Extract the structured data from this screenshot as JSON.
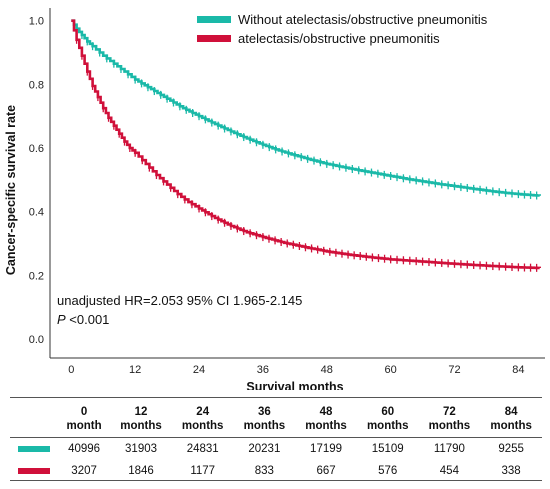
{
  "chart_data": {
    "type": "line",
    "xlabel": "Survival months",
    "ylabel": "Cancer-specific survival rate",
    "xlim": [
      -4,
      89
    ],
    "ylim": [
      -0.06,
      1.04
    ],
    "x_ticks": [
      0,
      12,
      24,
      36,
      48,
      60,
      72,
      84
    ],
    "x_tick_labels": [
      "0",
      "12",
      "24",
      "36",
      "48",
      "60",
      "72",
      "84"
    ],
    "y_ticks": [
      0.0,
      0.2,
      0.4,
      0.6,
      0.8,
      1.0
    ],
    "y_tick_labels": [
      "0.0",
      "0.2",
      "0.4",
      "0.6",
      "0.8",
      "1.0"
    ],
    "legend_position": "top-right",
    "grid": false,
    "series": [
      {
        "name": "Without atelectasis/obstructive pneumonitis",
        "color": "#1ab9a8",
        "x": [
          0,
          1,
          2,
          3,
          4,
          6,
          8,
          10,
          12,
          15,
          18,
          21,
          24,
          27,
          30,
          33,
          36,
          39,
          42,
          45,
          48,
          51,
          54,
          57,
          60,
          63,
          66,
          69,
          72,
          75,
          78,
          81,
          84,
          88
        ],
        "y": [
          1.0,
          0.975,
          0.955,
          0.935,
          0.92,
          0.89,
          0.865,
          0.84,
          0.815,
          0.785,
          0.755,
          0.725,
          0.7,
          0.675,
          0.652,
          0.63,
          0.61,
          0.592,
          0.577,
          0.563,
          0.55,
          0.54,
          0.53,
          0.521,
          0.512,
          0.503,
          0.495,
          0.487,
          0.48,
          0.473,
          0.466,
          0.46,
          0.455,
          0.45
        ]
      },
      {
        "name": "atelectasis/obstructive pneumonitis",
        "color": "#d0103a",
        "x": [
          0,
          1,
          2,
          3,
          4,
          5,
          6,
          7,
          8,
          9,
          10,
          11,
          12,
          14,
          16,
          18,
          20,
          22,
          24,
          27,
          30,
          33,
          36,
          40,
          44,
          48,
          52,
          56,
          60,
          66,
          72,
          78,
          84,
          88
        ],
        "y": [
          1.0,
          0.94,
          0.89,
          0.84,
          0.795,
          0.76,
          0.725,
          0.695,
          0.67,
          0.645,
          0.62,
          0.6,
          0.585,
          0.55,
          0.515,
          0.485,
          0.455,
          0.43,
          0.41,
          0.38,
          0.355,
          0.335,
          0.32,
          0.302,
          0.288,
          0.275,
          0.265,
          0.257,
          0.25,
          0.243,
          0.236,
          0.23,
          0.225,
          0.223
        ]
      }
    ]
  },
  "annotation": {
    "line1": "unadjusted HR=2.053 95% CI 1.965-2.145",
    "line2_italic": "P",
    "line2_rest": " <0.001"
  },
  "risk_table": {
    "headers": [
      {
        "top": "0",
        "bottom": "month"
      },
      {
        "top": "12",
        "bottom": "months"
      },
      {
        "top": "24",
        "bottom": "months"
      },
      {
        "top": "36",
        "bottom": "months"
      },
      {
        "top": "48",
        "bottom": "months"
      },
      {
        "top": "60",
        "bottom": "months"
      },
      {
        "top": "72",
        "bottom": "months"
      },
      {
        "top": "84",
        "bottom": "months"
      }
    ],
    "rows": [
      {
        "color": "#1ab9a8",
        "values": [
          "40996",
          "31903",
          "24831",
          "20231",
          "17199",
          "15109",
          "11790",
          "9255"
        ]
      },
      {
        "color": "#d0103a",
        "values": [
          "3207",
          "1846",
          "1177",
          "833",
          "667",
          "576",
          "454",
          "338"
        ]
      }
    ]
  }
}
